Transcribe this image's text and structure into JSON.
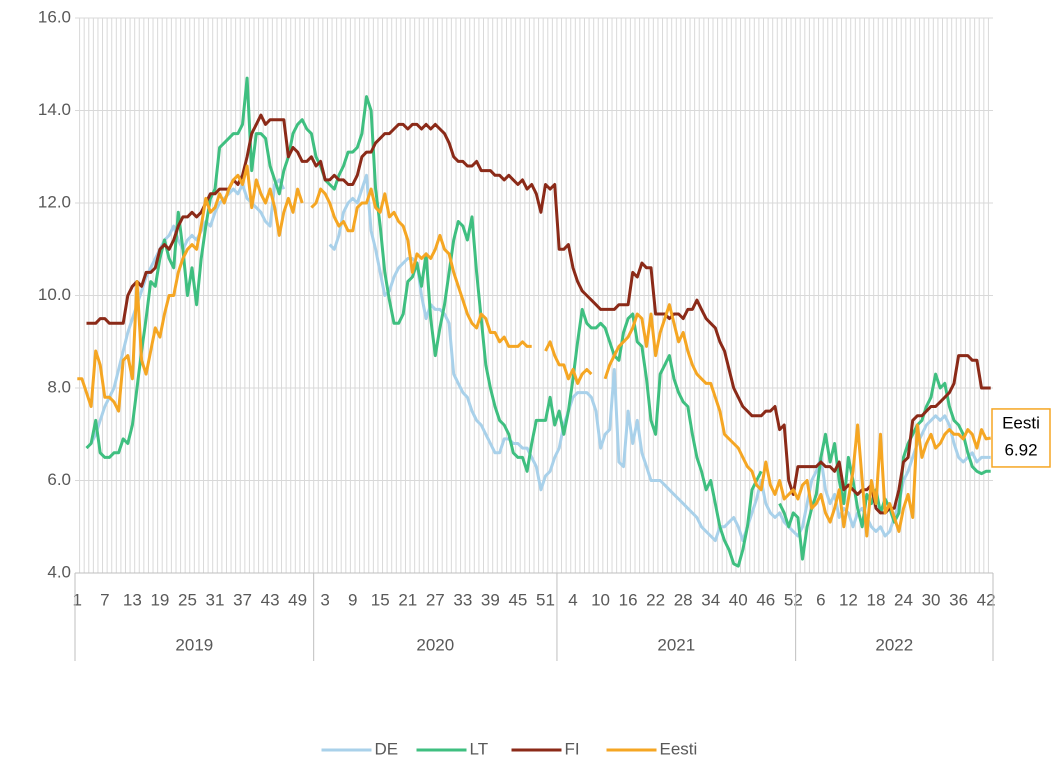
{
  "chart_data": {
    "type": "line",
    "categories": [
      "1",
      null,
      null,
      null,
      null,
      null,
      "7",
      null,
      null,
      null,
      null,
      null,
      "13",
      null,
      null,
      null,
      null,
      null,
      "19",
      null,
      null,
      null,
      null,
      null,
      "25",
      null,
      null,
      null,
      null,
      null,
      "31",
      null,
      null,
      null,
      null,
      null,
      "37",
      null,
      null,
      null,
      null,
      null,
      "43",
      null,
      null,
      null,
      null,
      null,
      "49",
      null,
      null,
      null,
      null,
      null,
      "3",
      null,
      null,
      null,
      null,
      null,
      "9",
      null,
      null,
      null,
      null,
      null,
      "15",
      null,
      null,
      null,
      null,
      null,
      "21",
      null,
      null,
      null,
      null,
      null,
      "27",
      null,
      null,
      null,
      null,
      null,
      "33",
      null,
      null,
      null,
      null,
      null,
      "39",
      null,
      null,
      null,
      null,
      null,
      "45",
      null,
      null,
      null,
      null,
      null,
      "51",
      null,
      null,
      null,
      null,
      null,
      "4",
      null,
      null,
      null,
      null,
      null,
      "10",
      null,
      null,
      null,
      null,
      null,
      "16",
      null,
      null,
      null,
      null,
      null,
      "22",
      null,
      null,
      null,
      null,
      null,
      "28",
      null,
      null,
      null,
      null,
      null,
      "34",
      null,
      null,
      null,
      null,
      null,
      "40",
      null,
      null,
      null,
      null,
      null,
      "46",
      null,
      null,
      null,
      null,
      null,
      "52",
      null,
      null,
      null,
      null,
      null,
      "6",
      null,
      null,
      null,
      null,
      null,
      "12",
      null,
      null,
      null,
      null,
      null,
      "18",
      null,
      null,
      null,
      null,
      null,
      "24",
      null,
      null,
      null,
      null,
      null,
      "30",
      null,
      null,
      null,
      null,
      null,
      "36",
      null,
      null,
      null,
      null,
      null,
      "42",
      null
    ],
    "groups": [
      {
        "label": "2019",
        "count": 52
      },
      {
        "label": "2020",
        "count": 53
      },
      {
        "label": "2021",
        "count": 52
      },
      {
        "label": "2022",
        "count": 43
      }
    ],
    "ylim": [
      4,
      16
    ],
    "yticks": [
      {
        "value": 4,
        "label": "4.0"
      },
      {
        "value": 6,
        "label": "6.0"
      },
      {
        "value": 8,
        "label": "8.0"
      },
      {
        "value": 10,
        "label": "10.0"
      },
      {
        "value": 12,
        "label": "12.0"
      },
      {
        "value": 14,
        "label": "14.0"
      },
      {
        "value": 16,
        "label": "16.0"
      }
    ],
    "grid": true,
    "legend": "bottom",
    "series": [
      {
        "name": "DE",
        "color": "#a9d1ea",
        "values": [
          null,
          null,
          null,
          6.8,
          7.0,
          7.3,
          7.6,
          7.8,
          8.0,
          8.4,
          8.8,
          9.2,
          9.5,
          9.8,
          10.1,
          10.4,
          10.6,
          10.8,
          11.0,
          11.2,
          11.3,
          11.5,
          11.2,
          11.0,
          11.2,
          11.3,
          11.2,
          11.4,
          11.6,
          11.5,
          11.8,
          12.0,
          12.1,
          12.2,
          12.3,
          12.2,
          12.4,
          12.1,
          12.0,
          11.9,
          11.8,
          11.6,
          11.5,
          12.4,
          12.5,
          12.3,
          null,
          null,
          null,
          null,
          null,
          null,
          null,
          null,
          null,
          11.1,
          11.0,
          11.3,
          11.8,
          12.0,
          12.1,
          12.0,
          12.3,
          12.6,
          11.4,
          11.0,
          10.5,
          10.0,
          10.1,
          10.4,
          10.6,
          10.7,
          10.8,
          10.8,
          10.7,
          10.0,
          9.5,
          9.8,
          9.7,
          9.7,
          9.6,
          9.4,
          8.3,
          8.1,
          7.9,
          7.8,
          7.5,
          7.3,
          7.2,
          7.0,
          6.8,
          6.6,
          6.6,
          6.9,
          6.9,
          6.8,
          6.8,
          6.7,
          6.7,
          6.5,
          6.3,
          5.8,
          6.1,
          6.2,
          6.5,
          6.7,
          7.2,
          7.5,
          7.8,
          7.9,
          7.9,
          7.9,
          7.8,
          7.5,
          6.7,
          7.0,
          7.1,
          8.4,
          6.4,
          6.3,
          7.5,
          6.8,
          7.3,
          6.6,
          6.3,
          6.0,
          6.0,
          6.0,
          5.9,
          5.8,
          5.7,
          5.6,
          5.5,
          5.4,
          5.3,
          5.2,
          5.0,
          4.9,
          4.8,
          4.7,
          5.0,
          5.0,
          5.1,
          5.2,
          5.0,
          4.7,
          5.0,
          5.3,
          5.6,
          6.0,
          5.5,
          5.3,
          5.2,
          5.3,
          5.1,
          5.0,
          4.9,
          4.8,
          5.0,
          5.5,
          6.0,
          6.2,
          6.5,
          5.8,
          5.5,
          5.7,
          5.2,
          5.4,
          5.3,
          5.0,
          5.3,
          5.4,
          5.2,
          5.0,
          4.9,
          5.0,
          4.8,
          4.9,
          5.2,
          5.5,
          6.0,
          6.2,
          6.5,
          6.8,
          7.0,
          7.2,
          7.3,
          7.4,
          7.3,
          7.4,
          7.2,
          6.8,
          6.5,
          6.4,
          6.5,
          6.6,
          6.4,
          6.5,
          6.5,
          6.5
        ]
      },
      {
        "name": "LT",
        "color": "#3fbf80",
        "values": [
          null,
          null,
          6.7,
          6.8,
          7.3,
          6.6,
          6.5,
          6.5,
          6.6,
          6.6,
          6.9,
          6.8,
          7.2,
          8.0,
          8.8,
          9.5,
          10.3,
          10.2,
          10.8,
          11.2,
          10.8,
          10.6,
          11.8,
          11.0,
          10.0,
          10.6,
          9.8,
          10.8,
          11.5,
          12.1,
          12.3,
          13.2,
          13.3,
          13.4,
          13.5,
          13.5,
          13.7,
          14.7,
          12.7,
          13.5,
          13.5,
          13.4,
          12.8,
          12.5,
          12.2,
          12.7,
          13.0,
          13.5,
          13.7,
          13.8,
          13.6,
          13.5,
          13.0,
          12.8,
          12.5,
          12.4,
          12.3,
          12.6,
          12.8,
          13.1,
          13.1,
          13.2,
          13.5,
          14.3,
          14.0,
          12.3,
          11.5,
          10.5,
          9.9,
          9.4,
          9.4,
          9.6,
          10.3,
          10.4,
          10.7,
          10.2,
          10.9,
          9.5,
          8.7,
          9.3,
          9.8,
          10.5,
          11.2,
          11.6,
          11.5,
          11.2,
          11.7,
          10.5,
          9.5,
          8.5,
          8.0,
          7.6,
          7.3,
          7.2,
          7.0,
          6.6,
          6.5,
          6.5,
          6.2,
          6.8,
          7.3,
          7.3,
          7.3,
          7.8,
          7.2,
          7.5,
          7.0,
          7.5,
          8.2,
          9.0,
          9.7,
          9.4,
          9.3,
          9.3,
          9.4,
          9.3,
          9.0,
          8.7,
          8.6,
          9.2,
          9.5,
          9.6,
          9.0,
          8.9,
          8.2,
          7.3,
          7.0,
          8.3,
          8.5,
          8.7,
          8.2,
          7.9,
          7.7,
          7.6,
          7.0,
          6.5,
          6.2,
          5.8,
          6.0,
          5.5,
          5.0,
          4.7,
          4.5,
          4.2,
          4.15,
          4.5,
          5.0,
          5.8,
          6.0,
          6.2,
          null,
          null,
          null,
          5.5,
          5.3,
          5.0,
          5.3,
          5.2,
          4.3,
          5.0,
          5.4,
          5.7,
          6.5,
          7.0,
          6.4,
          6.8,
          6.0,
          5.5,
          6.5,
          6.0,
          5.4,
          5.0,
          5.7,
          5.5,
          5.8,
          5.3,
          5.6,
          5.4,
          5.1,
          5.3,
          6.5,
          6.8,
          7.0,
          7.2,
          7.3,
          7.6,
          7.8,
          8.3,
          8.0,
          8.1,
          7.6,
          7.3,
          7.2,
          7.0,
          6.6,
          6.3,
          6.2,
          6.15,
          6.2,
          6.2
        ]
      },
      {
        "name": "FI",
        "color": "#8b2a18",
        "values": [
          null,
          null,
          9.4,
          9.4,
          9.4,
          9.5,
          9.5,
          9.4,
          9.4,
          9.4,
          9.4,
          10.0,
          10.2,
          10.3,
          10.2,
          10.5,
          10.5,
          10.6,
          11.0,
          11.1,
          11.0,
          11.2,
          11.5,
          11.7,
          11.7,
          11.8,
          11.7,
          11.8,
          12.0,
          12.2,
          12.2,
          12.3,
          12.3,
          12.3,
          12.5,
          12.4,
          12.6,
          13.0,
          13.5,
          13.7,
          13.9,
          13.7,
          13.8,
          13.8,
          13.8,
          13.8,
          13.0,
          13.2,
          13.1,
          12.9,
          12.9,
          13.0,
          12.8,
          12.9,
          12.5,
          12.5,
          12.6,
          12.5,
          12.5,
          12.4,
          12.4,
          12.6,
          13.0,
          13.1,
          13.1,
          13.3,
          13.4,
          13.5,
          13.5,
          13.6,
          13.7,
          13.7,
          13.6,
          13.7,
          13.7,
          13.6,
          13.7,
          13.6,
          13.7,
          13.6,
          13.5,
          13.3,
          13.0,
          12.9,
          12.9,
          12.8,
          12.8,
          12.9,
          12.7,
          12.7,
          12.7,
          12.6,
          12.6,
          12.5,
          12.6,
          12.5,
          12.4,
          12.5,
          12.3,
          12.4,
          12.2,
          11.8,
          12.4,
          12.3,
          12.4,
          11.0,
          11.0,
          11.1,
          10.6,
          10.3,
          10.1,
          10.0,
          9.9,
          9.8,
          9.7,
          9.7,
          9.7,
          9.7,
          9.8,
          9.8,
          9.8,
          10.5,
          10.4,
          10.7,
          10.6,
          10.6,
          9.6,
          9.6,
          9.6,
          9.5,
          9.6,
          9.6,
          9.5,
          9.7,
          9.7,
          9.9,
          9.7,
          9.5,
          9.4,
          9.3,
          9.0,
          8.8,
          8.4,
          8.0,
          7.8,
          7.6,
          7.5,
          7.4,
          7.4,
          7.4,
          7.5,
          7.5,
          7.6,
          7.1,
          7.2,
          6.0,
          5.7,
          6.3,
          6.3,
          6.3,
          6.3,
          6.3,
          6.4,
          6.3,
          6.3,
          6.2,
          6.4,
          5.8,
          5.9,
          5.8,
          5.7,
          5.8,
          5.8,
          5.9,
          5.4,
          5.3,
          5.3,
          5.4,
          5.4,
          5.8,
          6.4,
          6.5,
          7.3,
          7.4,
          7.4,
          7.5,
          7.6,
          7.6,
          7.7,
          7.8,
          7.9,
          8.1,
          8.7,
          8.7,
          8.7,
          8.6,
          8.6,
          8.0,
          8.0,
          8.0
        ]
      },
      {
        "name": "Eesti",
        "color": "#f5a623",
        "values": [
          8.2,
          8.2,
          7.9,
          7.6,
          8.8,
          8.5,
          7.8,
          7.8,
          7.7,
          7.5,
          8.6,
          8.7,
          8.2,
          10.3,
          8.6,
          8.3,
          8.8,
          9.3,
          9.1,
          9.6,
          10.0,
          10.0,
          10.5,
          10.8,
          11.0,
          11.1,
          11.0,
          11.5,
          12.1,
          11.8,
          11.9,
          12.2,
          12.0,
          12.3,
          12.5,
          12.6,
          12.4,
          12.8,
          11.9,
          12.5,
          12.2,
          12.0,
          12.3,
          11.9,
          11.3,
          11.8,
          12.1,
          11.8,
          12.3,
          12.0,
          null,
          11.9,
          12.0,
          12.3,
          12.2,
          12.0,
          11.7,
          11.5,
          11.6,
          11.4,
          11.4,
          11.9,
          12.0,
          12.0,
          12.3,
          11.9,
          11.8,
          12.2,
          11.7,
          11.8,
          11.6,
          11.5,
          11.2,
          10.5,
          10.9,
          10.8,
          10.9,
          10.8,
          11.0,
          11.3,
          11.0,
          10.9,
          10.5,
          10.2,
          9.9,
          9.6,
          9.4,
          9.3,
          9.6,
          9.5,
          9.2,
          9.2,
          9.0,
          9.1,
          8.9,
          8.9,
          8.9,
          9.0,
          8.9,
          8.9,
          null,
          null,
          8.8,
          9.0,
          8.7,
          8.5,
          8.5,
          8.2,
          8.4,
          8.1,
          8.3,
          8.4,
          8.3,
          null,
          null,
          8.2,
          8.5,
          8.7,
          8.9,
          9.0,
          9.1,
          9.3,
          9.6,
          9.5,
          8.9,
          9.6,
          8.7,
          9.2,
          9.5,
          9.8,
          9.4,
          9.0,
          9.2,
          8.8,
          8.5,
          8.3,
          8.2,
          8.1,
          8.1,
          7.8,
          7.5,
          7.0,
          6.9,
          6.8,
          6.7,
          6.5,
          6.3,
          6.2,
          5.9,
          5.8,
          6.4,
          5.9,
          5.7,
          6.0,
          5.6,
          5.7,
          5.8,
          5.6,
          5.9,
          6.0,
          5.4,
          5.5,
          5.7,
          5.3,
          5.1,
          5.4,
          5.8,
          5.0,
          5.6,
          6.2,
          7.2,
          6.0,
          4.8,
          6.0,
          5.5,
          7.0,
          5.3,
          5.5,
          5.2,
          4.9,
          5.4,
          5.7,
          5.2,
          7.2,
          6.5,
          6.8,
          7.0,
          6.7,
          6.8,
          7.0,
          7.1,
          7.0,
          7.0,
          6.9,
          7.1,
          7.0,
          6.7,
          7.1,
          6.9,
          6.92
        ]
      }
    ]
  }
}
